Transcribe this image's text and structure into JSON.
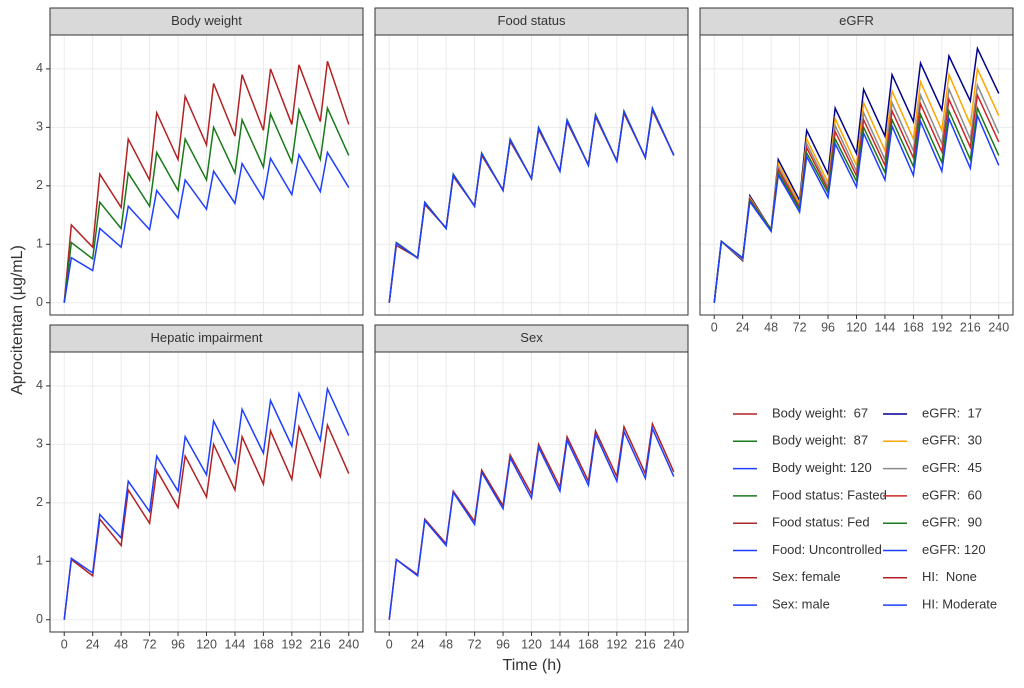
{
  "y_label": "Aprocitentan (µg/mL)",
  "x_label": "Time (h)",
  "chart_data": [
    {
      "type": "line",
      "title": "Body weight",
      "x": [
        0,
        6,
        24,
        30,
        48,
        54,
        72,
        78,
        96,
        102,
        120,
        126,
        144,
        150,
        168,
        174,
        192,
        198,
        216,
        222,
        240
      ],
      "xlim": [
        -12,
        252
      ],
      "ylim": [
        -0.21,
        4.58
      ],
      "xticks": [
        0,
        24,
        48,
        72,
        96,
        120,
        144,
        168,
        192,
        216,
        240
      ],
      "yticks": [
        0,
        1,
        2,
        3,
        4
      ],
      "grid": true,
      "series": [
        {
          "name": "Body weight:  67",
          "color": "#b22222",
          "values": [
            0,
            1.33,
            0.95,
            2.2,
            1.63,
            2.8,
            2.1,
            3.25,
            2.45,
            3.53,
            2.7,
            3.75,
            2.85,
            3.9,
            2.95,
            4.0,
            3.05,
            4.07,
            3.1,
            4.13,
            3.05
          ]
        },
        {
          "name": "Body weight:  87",
          "color": "#1a7a1a",
          "values": [
            0,
            1.03,
            0.75,
            1.72,
            1.27,
            2.22,
            1.65,
            2.57,
            1.92,
            2.8,
            2.1,
            3.0,
            2.22,
            3.13,
            2.32,
            3.23,
            2.4,
            3.3,
            2.45,
            3.33,
            2.52
          ]
        },
        {
          "name": "Body weight: 120",
          "color": "#1f3fff",
          "values": [
            0,
            0.77,
            0.55,
            1.27,
            0.95,
            1.65,
            1.25,
            1.92,
            1.45,
            2.1,
            1.6,
            2.25,
            1.7,
            2.38,
            1.78,
            2.47,
            1.85,
            2.53,
            1.9,
            2.57,
            1.97
          ]
        }
      ]
    },
    {
      "type": "line",
      "title": "Food status",
      "x": [
        0,
        6,
        24,
        30,
        48,
        54,
        72,
        78,
        96,
        102,
        120,
        126,
        144,
        150,
        168,
        174,
        192,
        198,
        216,
        222,
        240
      ],
      "xlim": [
        -12,
        252
      ],
      "ylim": [
        -0.21,
        4.58
      ],
      "xticks": [
        0,
        24,
        48,
        72,
        96,
        120,
        144,
        168,
        192,
        216,
        240
      ],
      "yticks": [
        0,
        1,
        2,
        3,
        4
      ],
      "grid": true,
      "series": [
        {
          "name": "Food status: Fasted",
          "color": "#1a7a1a",
          "values": [
            0,
            1.03,
            0.77,
            1.72,
            1.27,
            2.2,
            1.65,
            2.56,
            1.92,
            2.8,
            2.12,
            3.0,
            2.25,
            3.13,
            2.35,
            3.22,
            2.42,
            3.28,
            2.48,
            3.33,
            2.52
          ]
        },
        {
          "name": "Food status: Fed",
          "color": "#a52a2a",
          "values": [
            0,
            0.98,
            0.77,
            1.68,
            1.28,
            2.16,
            1.66,
            2.52,
            1.93,
            2.76,
            2.13,
            2.96,
            2.26,
            3.09,
            2.36,
            3.18,
            2.43,
            3.24,
            2.49,
            3.29,
            2.53
          ]
        },
        {
          "name": "Food: Uncontrolled",
          "color": "#1f3fff",
          "values": [
            0,
            1.02,
            0.76,
            1.71,
            1.27,
            2.19,
            1.65,
            2.55,
            1.92,
            2.79,
            2.12,
            2.99,
            2.25,
            3.12,
            2.35,
            3.21,
            2.42,
            3.27,
            2.48,
            3.32,
            2.52
          ]
        }
      ]
    },
    {
      "type": "line",
      "title": "eGFR",
      "x": [
        0,
        6,
        24,
        30,
        48,
        54,
        72,
        78,
        96,
        102,
        120,
        126,
        144,
        150,
        168,
        174,
        192,
        198,
        216,
        222,
        240
      ],
      "xlim": [
        -12,
        252
      ],
      "ylim": [
        -0.21,
        4.58
      ],
      "xticks": [
        0,
        24,
        48,
        72,
        96,
        120,
        144,
        168,
        192,
        216,
        240
      ],
      "yticks": [
        0,
        1,
        2,
        3,
        4
      ],
      "grid": true,
      "series": [
        {
          "name": "eGFR:  17",
          "color": "#00008b",
          "values": [
            0,
            1.05,
            0.72,
            1.83,
            1.25,
            2.45,
            1.75,
            2.95,
            2.2,
            3.33,
            2.55,
            3.65,
            2.85,
            3.9,
            3.1,
            4.1,
            3.3,
            4.22,
            3.45,
            4.35,
            3.58
          ]
        },
        {
          "name": "eGFR:  30",
          "color": "#ffa500",
          "values": [
            0,
            1.05,
            0.74,
            1.8,
            1.25,
            2.38,
            1.7,
            2.8,
            2.05,
            3.15,
            2.35,
            3.42,
            2.6,
            3.62,
            2.8,
            3.78,
            2.95,
            3.9,
            3.05,
            4.0,
            3.2
          ]
        },
        {
          "name": "eGFR:  45",
          "color": "#8c8c8c",
          "values": [
            0,
            1.05,
            0.75,
            1.78,
            1.25,
            2.32,
            1.65,
            2.72,
            1.98,
            3.03,
            2.25,
            3.25,
            2.45,
            3.42,
            2.6,
            3.55,
            2.72,
            3.65,
            2.8,
            3.72,
            2.9
          ]
        },
        {
          "name": "eGFR:  60",
          "color": "#cd2626",
          "values": [
            0,
            1.05,
            0.76,
            1.77,
            1.25,
            2.28,
            1.63,
            2.65,
            1.93,
            2.93,
            2.17,
            3.13,
            2.35,
            3.28,
            2.48,
            3.4,
            2.58,
            3.48,
            2.66,
            3.55,
            2.75
          ]
        },
        {
          "name": "eGFR:  90",
          "color": "#1a7a1a",
          "values": [
            0,
            1.05,
            0.77,
            1.75,
            1.25,
            2.22,
            1.6,
            2.56,
            1.88,
            2.8,
            2.08,
            3.0,
            2.23,
            3.13,
            2.33,
            3.22,
            2.4,
            3.28,
            2.45,
            3.33,
            2.52
          ]
        },
        {
          "name": "eGFR: 120",
          "color": "#1f3fff",
          "values": [
            0,
            1.05,
            0.76,
            1.73,
            1.22,
            2.18,
            1.55,
            2.5,
            1.8,
            2.72,
            1.98,
            2.9,
            2.1,
            3.02,
            2.18,
            3.1,
            2.25,
            3.15,
            2.3,
            3.2,
            2.35
          ]
        }
      ]
    },
    {
      "type": "line",
      "title": "Hepatic impairment",
      "x": [
        0,
        6,
        24,
        30,
        48,
        54,
        72,
        78,
        96,
        102,
        120,
        126,
        144,
        150,
        168,
        174,
        192,
        198,
        216,
        222,
        240
      ],
      "xlim": [
        -12,
        252
      ],
      "ylim": [
        -0.21,
        4.58
      ],
      "xticks": [
        0,
        24,
        48,
        72,
        96,
        120,
        144,
        168,
        192,
        216,
        240
      ],
      "yticks": [
        0,
        1,
        2,
        3,
        4
      ],
      "grid": true,
      "series": [
        {
          "name": "HI:  None",
          "color": "#b22222",
          "values": [
            0,
            1.03,
            0.75,
            1.72,
            1.27,
            2.22,
            1.65,
            2.56,
            1.92,
            2.8,
            2.1,
            3.0,
            2.22,
            3.13,
            2.32,
            3.23,
            2.4,
            3.3,
            2.45,
            3.33,
            2.5
          ]
        },
        {
          "name": "HI: Moderate",
          "color": "#1f3fff",
          "values": [
            0,
            1.05,
            0.8,
            1.8,
            1.4,
            2.37,
            1.85,
            2.8,
            2.2,
            3.13,
            2.48,
            3.4,
            2.68,
            3.6,
            2.85,
            3.75,
            2.97,
            3.87,
            3.07,
            3.95,
            3.15
          ]
        }
      ]
    },
    {
      "type": "line",
      "title": "Sex",
      "x": [
        0,
        6,
        24,
        30,
        48,
        54,
        72,
        78,
        96,
        102,
        120,
        126,
        144,
        150,
        168,
        174,
        192,
        198,
        216,
        222,
        240
      ],
      "xlim": [
        -12,
        252
      ],
      "ylim": [
        -0.21,
        4.58
      ],
      "xticks": [
        0,
        24,
        48,
        72,
        96,
        120,
        144,
        168,
        192,
        216,
        240
      ],
      "yticks": [
        0,
        1,
        2,
        3,
        4
      ],
      "grid": true,
      "series": [
        {
          "name": "Sex: female",
          "color": "#b22222",
          "values": [
            0,
            1.03,
            0.77,
            1.72,
            1.3,
            2.2,
            1.68,
            2.56,
            1.95,
            2.82,
            2.15,
            3.0,
            2.27,
            3.13,
            2.37,
            3.23,
            2.45,
            3.3,
            2.5,
            3.35,
            2.53
          ]
        },
        {
          "name": "Sex: male",
          "color": "#1f3fff",
          "values": [
            0,
            1.03,
            0.75,
            1.7,
            1.27,
            2.18,
            1.63,
            2.52,
            1.9,
            2.77,
            2.08,
            2.95,
            2.2,
            3.07,
            2.3,
            3.17,
            2.37,
            3.22,
            2.42,
            3.27,
            2.45
          ]
        }
      ]
    }
  ]
}
